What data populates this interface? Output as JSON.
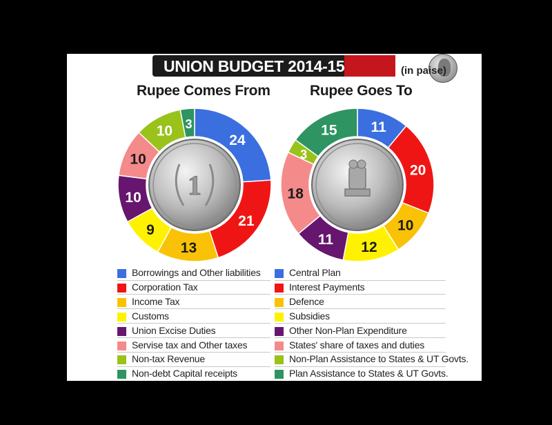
{
  "header": {
    "title": "UNION BUDGET 2014-15",
    "unit": "(in paise)"
  },
  "chart_data": [
    {
      "type": "pie",
      "title": "Rupee Comes From",
      "categories": [
        "Borrowings and Other liabilities",
        "Corporation Tax",
        "Income Tax",
        "Customs",
        "Union Excise Duties",
        "Servise tax and Other taxes",
        "Non-tax Revenue",
        "Non-debt Capital receipts"
      ],
      "values": [
        24,
        21,
        13,
        9,
        10,
        10,
        10,
        3
      ],
      "colors": [
        "#3b6fe0",
        "#f01515",
        "#f9c207",
        "#fff200",
        "#66166e",
        "#f58a8a",
        "#99c21b",
        "#2e9461"
      ],
      "center_image": "one-rupee-coin-2000"
    },
    {
      "type": "pie",
      "title": "Rupee Goes To",
      "categories": [
        "Central Plan",
        "Interest Payments",
        "Defence",
        "Subsidies",
        "Other Non-Plan Expenditure",
        "States' share of taxes and duties",
        "Non-Plan Assistance to States & UT Govts.",
        "Plan Assistance to States & UT Govts."
      ],
      "values": [
        11,
        20,
        10,
        12,
        11,
        18,
        3,
        15
      ],
      "colors": [
        "#3b6fe0",
        "#f01515",
        "#f9c207",
        "#fff200",
        "#66166e",
        "#f58a8a",
        "#99c21b",
        "#2e9461"
      ],
      "center_image": "one-rupee-coin-ashoka-emblem"
    }
  ]
}
